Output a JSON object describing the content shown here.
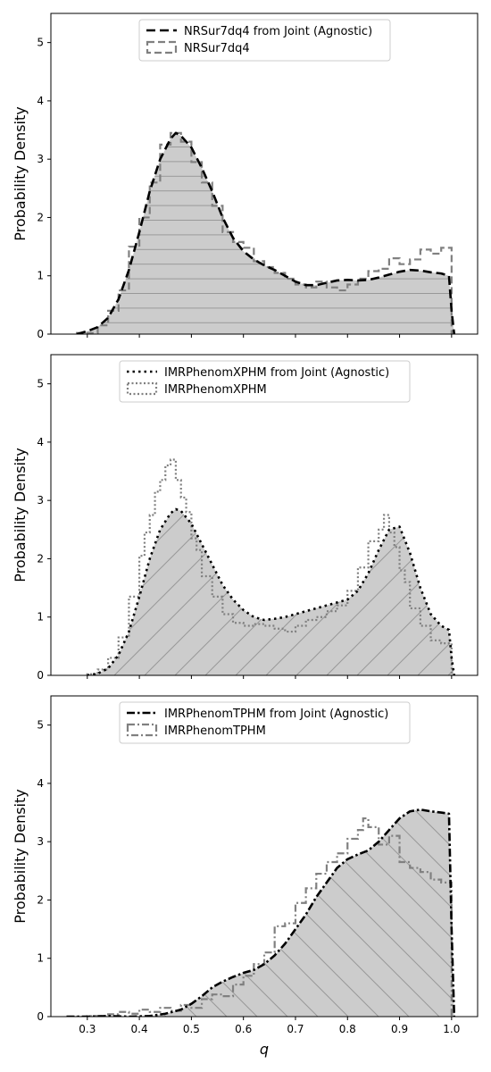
{
  "chart_data": [
    {
      "type": "line",
      "ylabel": "Probability Density",
      "xlabel": "",
      "xlim": [
        0.23,
        1.05
      ],
      "ylim": [
        0,
        5.5
      ],
      "xticks": [
        0.3,
        0.4,
        0.5,
        0.6,
        0.7,
        0.8,
        0.9,
        1.0
      ],
      "yticks": [
        0,
        1,
        2,
        3,
        4,
        5
      ],
      "xtick_labels_shown": false,
      "legend_position": "top-center",
      "hatch": "horizontal",
      "series": [
        {
          "name": "NRSur7dq4 from Joint (Agnostic)",
          "style": "dashed",
          "color": "#000000",
          "x": [
            0.28,
            0.3,
            0.32,
            0.34,
            0.36,
            0.38,
            0.4,
            0.42,
            0.44,
            0.46,
            0.47,
            0.48,
            0.5,
            0.52,
            0.54,
            0.56,
            0.58,
            0.6,
            0.62,
            0.64,
            0.66,
            0.68,
            0.7,
            0.72,
            0.74,
            0.76,
            0.78,
            0.8,
            0.82,
            0.84,
            0.86,
            0.88,
            0.9,
            0.92,
            0.94,
            0.96,
            0.98,
            0.995,
            1.0,
            1.005
          ],
          "y": [
            0.0,
            0.05,
            0.12,
            0.28,
            0.6,
            1.1,
            1.75,
            2.45,
            3.0,
            3.35,
            3.45,
            3.4,
            3.2,
            2.85,
            2.45,
            2.0,
            1.65,
            1.42,
            1.28,
            1.18,
            1.1,
            1.0,
            0.9,
            0.84,
            0.84,
            0.88,
            0.92,
            0.93,
            0.92,
            0.93,
            0.97,
            1.02,
            1.07,
            1.1,
            1.09,
            1.06,
            1.04,
            1.0,
            0.4,
            0.0
          ]
        },
        {
          "name": "NRSur7dq4",
          "style": "dashed-step",
          "color": "#808080",
          "edges": [
            0.28,
            0.32,
            0.34,
            0.36,
            0.38,
            0.4,
            0.42,
            0.44,
            0.46,
            0.48,
            0.5,
            0.52,
            0.54,
            0.56,
            0.58,
            0.6,
            0.62,
            0.64,
            0.66,
            0.68,
            0.7,
            0.72,
            0.74,
            0.76,
            0.78,
            0.8,
            0.82,
            0.84,
            0.86,
            0.88,
            0.9,
            0.92,
            0.94,
            0.96,
            0.98,
            1.0
          ],
          "values": [
            0.02,
            0.15,
            0.4,
            0.75,
            1.5,
            2.0,
            2.6,
            3.25,
            3.45,
            3.3,
            2.95,
            2.6,
            2.2,
            1.75,
            1.58,
            1.48,
            1.25,
            1.15,
            1.05,
            0.95,
            0.85,
            0.8,
            0.9,
            0.8,
            0.75,
            0.85,
            0.95,
            1.08,
            1.12,
            1.3,
            1.2,
            1.28,
            1.45,
            1.38,
            1.48
          ]
        }
      ]
    },
    {
      "type": "line",
      "ylabel": "Probability Density",
      "xlabel": "",
      "xlim": [
        0.23,
        1.05
      ],
      "ylim": [
        0,
        5.5
      ],
      "xticks": [
        0.3,
        0.4,
        0.5,
        0.6,
        0.7,
        0.8,
        0.9,
        1.0
      ],
      "yticks": [
        0,
        1,
        2,
        3,
        4,
        5
      ],
      "xtick_labels_shown": false,
      "legend_position": "top-center",
      "hatch": "diagonal-up",
      "series": [
        {
          "name": "IMRPhenomXPHM from Joint (Agnostic)",
          "style": "dotted",
          "color": "#000000",
          "x": [
            0.3,
            0.32,
            0.34,
            0.36,
            0.38,
            0.4,
            0.42,
            0.44,
            0.46,
            0.47,
            0.48,
            0.5,
            0.52,
            0.54,
            0.56,
            0.58,
            0.6,
            0.62,
            0.64,
            0.66,
            0.68,
            0.7,
            0.72,
            0.74,
            0.76,
            0.78,
            0.8,
            0.82,
            0.84,
            0.86,
            0.88,
            0.9,
            0.92,
            0.94,
            0.96,
            0.98,
            0.995,
            1.0,
            1.005
          ],
          "y": [
            0.0,
            0.03,
            0.12,
            0.35,
            0.75,
            1.35,
            2.0,
            2.5,
            2.78,
            2.85,
            2.82,
            2.6,
            2.25,
            1.9,
            1.55,
            1.3,
            1.12,
            1.0,
            0.95,
            0.97,
            1.0,
            1.05,
            1.1,
            1.15,
            1.2,
            1.25,
            1.3,
            1.45,
            1.75,
            2.15,
            2.5,
            2.55,
            2.1,
            1.5,
            1.05,
            0.85,
            0.78,
            0.3,
            0.0
          ]
        },
        {
          "name": "IMRPhenomXPHM",
          "style": "dotted-step",
          "color": "#808080",
          "edges": [
            0.3,
            0.32,
            0.34,
            0.36,
            0.38,
            0.4,
            0.41,
            0.42,
            0.43,
            0.44,
            0.45,
            0.46,
            0.47,
            0.48,
            0.49,
            0.5,
            0.51,
            0.52,
            0.54,
            0.56,
            0.58,
            0.6,
            0.62,
            0.64,
            0.66,
            0.68,
            0.7,
            0.72,
            0.74,
            0.76,
            0.78,
            0.8,
            0.82,
            0.84,
            0.86,
            0.87,
            0.88,
            0.89,
            0.9,
            0.91,
            0.92,
            0.94,
            0.96,
            0.98,
            1.0
          ],
          "values": [
            0.02,
            0.1,
            0.3,
            0.65,
            1.35,
            2.05,
            2.45,
            2.75,
            3.15,
            3.35,
            3.6,
            3.7,
            3.35,
            3.05,
            2.8,
            2.35,
            2.15,
            1.7,
            1.35,
            1.05,
            0.9,
            0.85,
            0.88,
            0.85,
            0.8,
            0.75,
            0.85,
            0.95,
            1.0,
            1.1,
            1.2,
            1.45,
            1.85,
            2.3,
            2.5,
            2.75,
            2.45,
            2.2,
            1.8,
            1.6,
            1.15,
            0.85,
            0.6,
            0.55
          ]
        }
      ]
    },
    {
      "type": "line",
      "ylabel": "Probability Density",
      "xlabel": "q",
      "xlim": [
        0.23,
        1.05
      ],
      "ylim": [
        0,
        5.5
      ],
      "xticks": [
        0.3,
        0.4,
        0.5,
        0.6,
        0.7,
        0.8,
        0.9,
        1.0
      ],
      "xtick_labels": [
        "0.3",
        "0.4",
        "0.5",
        "0.6",
        "0.7",
        "0.8",
        "0.9",
        "1.0"
      ],
      "yticks": [
        0,
        1,
        2,
        3,
        4,
        5
      ],
      "xtick_labels_shown": true,
      "legend_position": "top-center",
      "hatch": "diagonal-down",
      "series": [
        {
          "name": "IMRPhenomTPHM from Joint (Agnostic)",
          "style": "dashdot",
          "color": "#000000",
          "x": [
            0.26,
            0.3,
            0.34,
            0.38,
            0.42,
            0.45,
            0.48,
            0.5,
            0.52,
            0.54,
            0.56,
            0.58,
            0.6,
            0.62,
            0.64,
            0.66,
            0.68,
            0.7,
            0.72,
            0.74,
            0.76,
            0.78,
            0.8,
            0.82,
            0.84,
            0.86,
            0.88,
            0.9,
            0.92,
            0.94,
            0.96,
            0.98,
            0.995,
            1.0,
            1.005
          ],
          "y": [
            0.0,
            0.0,
            0.01,
            0.0,
            0.01,
            0.05,
            0.12,
            0.22,
            0.35,
            0.5,
            0.6,
            0.68,
            0.75,
            0.8,
            0.9,
            1.05,
            1.25,
            1.5,
            1.75,
            2.05,
            2.3,
            2.55,
            2.7,
            2.78,
            2.85,
            3.0,
            3.2,
            3.4,
            3.52,
            3.55,
            3.52,
            3.5,
            3.48,
            1.5,
            0.0
          ]
        },
        {
          "name": "IMRPhenomTPHM",
          "style": "dashdot-step",
          "color": "#808080",
          "edges": [
            0.26,
            0.3,
            0.34,
            0.36,
            0.38,
            0.4,
            0.42,
            0.44,
            0.46,
            0.48,
            0.5,
            0.52,
            0.54,
            0.56,
            0.58,
            0.6,
            0.62,
            0.64,
            0.66,
            0.68,
            0.7,
            0.72,
            0.74,
            0.76,
            0.78,
            0.8,
            0.82,
            0.83,
            0.84,
            0.86,
            0.88,
            0.9,
            0.92,
            0.94,
            0.96,
            0.98,
            1.0
          ],
          "values": [
            0.0,
            0.01,
            0.04,
            0.08,
            0.05,
            0.12,
            0.08,
            0.15,
            0.1,
            0.2,
            0.15,
            0.3,
            0.38,
            0.35,
            0.55,
            0.7,
            0.9,
            1.1,
            1.55,
            1.6,
            1.95,
            2.2,
            2.45,
            2.65,
            2.8,
            3.05,
            3.2,
            3.4,
            3.25,
            2.95,
            3.1,
            2.65,
            2.55,
            2.48,
            2.35,
            2.3
          ]
        }
      ]
    }
  ]
}
